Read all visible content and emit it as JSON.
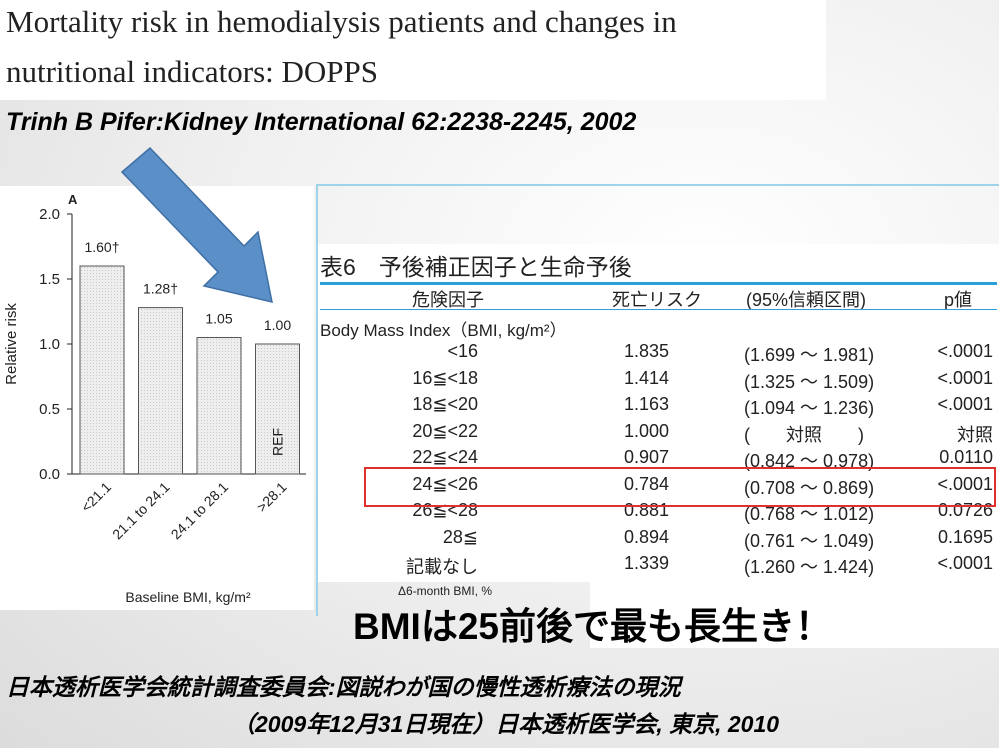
{
  "header": {
    "title_line1": "Mortality risk in hemodialysis patients and changes in",
    "title_line2": "nutritional indicators: DOPPS",
    "citation": "Trinh B Pifer:Kidney International 62:2238-2245, 2002"
  },
  "chart_data": {
    "type": "bar",
    "panel_label": "A",
    "categories": [
      "<21.1",
      "21.1 to 24.1",
      "24.1 to 28.1",
      ">28.1"
    ],
    "values": [
      1.6,
      1.28,
      1.05,
      1.0
    ],
    "value_labels": [
      "1.60†",
      "1.28†",
      "1.05",
      "1.00"
    ],
    "ref_label": "REF",
    "ylabel": "Relative risk",
    "xlabel": "Baseline BMI, kg/m²",
    "ylim": [
      0,
      2.0
    ],
    "yticks": [
      "0.0",
      "0.5",
      "1.0",
      "1.5",
      "2.0"
    ],
    "bar_color": "#eeeeee",
    "grid": false
  },
  "arrow_color": "#5b8fc8",
  "table": {
    "title": "表6　予後補正因子と生命予後",
    "headers": [
      "危険因子",
      "死亡リスク",
      "(95%信頼区間)",
      "p値"
    ],
    "section": "Body Mass Index（BMI, kg/m²）",
    "rows": [
      {
        "factor": "<16",
        "risk": "1.835",
        "ci": "(1.699 ～ 1.981)",
        "p": "<.0001"
      },
      {
        "factor": "16≦<18",
        "risk": "1.414",
        "ci": "(1.325 ～ 1.509)",
        "p": "<.0001"
      },
      {
        "factor": "18≦<20",
        "risk": "1.163",
        "ci": "(1.094 ～ 1.236)",
        "p": "<.0001"
      },
      {
        "factor": "20≦<22",
        "risk": "1.000",
        "ci": "(　　対照　　)",
        "p": "対照"
      },
      {
        "factor": "22≦<24",
        "risk": "0.907",
        "ci": "(0.842 ～ 0.978)",
        "p": "0.0110"
      },
      {
        "factor": "24≦<26",
        "risk": "0.784",
        "ci": "(0.708 ～ 0.869)",
        "p": "<.0001"
      },
      {
        "factor": "26≦<28",
        "risk": "0.881",
        "ci": "(0.768 ～ 1.012)",
        "p": "0.0726"
      },
      {
        "factor": "28≦",
        "risk": "0.894",
        "ci": "(0.761 ～ 1.049)",
        "p": "0.1695"
      },
      {
        "factor": "記載なし",
        "risk": "1.339",
        "ci": "(1.260 ～ 1.424)",
        "p": "<.0001"
      }
    ],
    "highlight_color": "#e0302b",
    "rule_color": "#2aa0d8"
  },
  "delta_label": "Δ6-month BMI, %",
  "slogan": "BMIは25前後で最も長生き！",
  "source_line1": "日本透析医学会統計調査委員会:図説わが国の慢性透析療法の現況",
  "source_line2": "（2009年12月31日現在）日本透析医学会, 東京, 2010"
}
